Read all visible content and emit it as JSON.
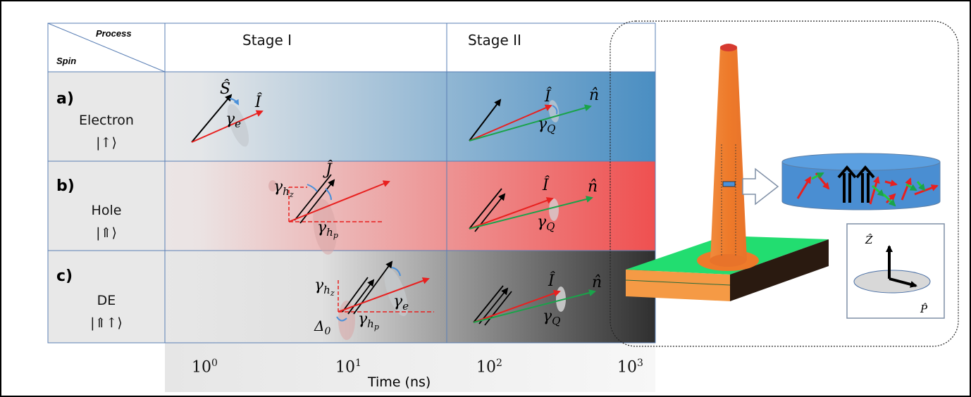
{
  "header": {
    "process": "Process",
    "spin": "Spin"
  },
  "stages": {
    "stage1": "Stage I",
    "stage2": "Stage II"
  },
  "rows": [
    {
      "letter": "a)",
      "name": "Electron",
      "ket": "|↑⟩"
    },
    {
      "letter": "b)",
      "name": "Hole",
      "ket": "|⇑⟩"
    },
    {
      "letter": "c)",
      "name": "DE",
      "ket": "|⇑↑⟩"
    }
  ],
  "axis": {
    "label": "Time (ns)",
    "ticks": [
      {
        "base": "10",
        "exp": "0"
      },
      {
        "base": "10",
        "exp": "1"
      },
      {
        "base": "10",
        "exp": "2"
      },
      {
        "base": "10",
        "exp": "3"
      }
    ]
  },
  "symbols": {
    "S": "Ŝ",
    "I": "Î",
    "J": "Ĵ",
    "n": "n̂",
    "gamma_e": "γe",
    "gamma_Q": "γQ",
    "gamma_hz": "γhz",
    "gamma_hp": "γhp",
    "delta0": "Δ0",
    "Z": "Ẑ",
    "P": "P̂"
  },
  "colors": {
    "electron": "#4a8cc0",
    "hole": "#ef5656",
    "de": "#3a3a3a",
    "red_vector": "#e8201f",
    "green_vector": "#1aa34a",
    "pillar": "#ef7f2f"
  }
}
